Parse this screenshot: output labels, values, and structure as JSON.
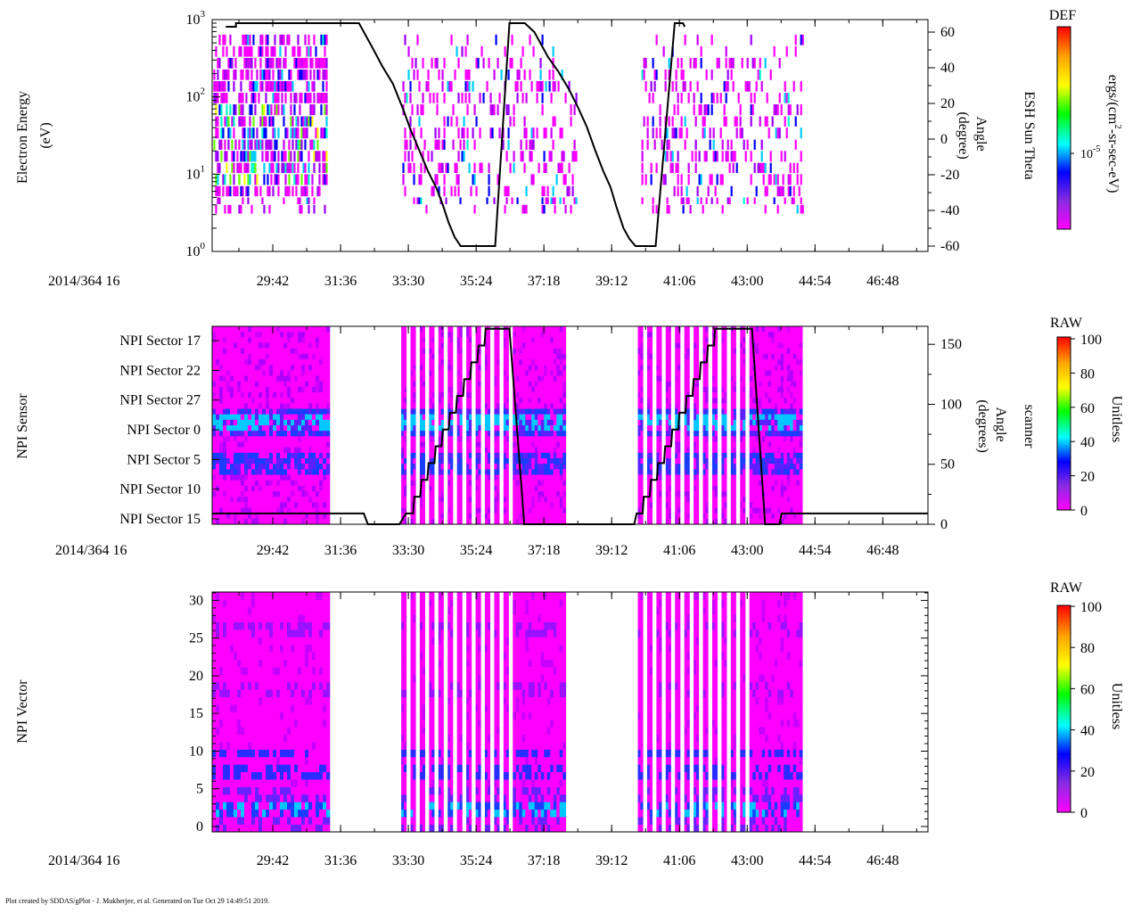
{
  "chart_data": [
    {
      "type": "heatmap",
      "panel": "electron-energy",
      "ylabel": [
        "Electron Energy",
        "(eV)"
      ],
      "y_scale": "log",
      "ylim": [
        1,
        1000
      ],
      "y_ticks": [
        {
          "base": "10",
          "exp": "0"
        },
        {
          "base": "10",
          "exp": "1"
        },
        {
          "base": "10",
          "exp": "2"
        },
        {
          "base": "10",
          "exp": "3"
        }
      ],
      "xlabel": "2014/364 16",
      "x_tick_labels": [
        "29:42",
        "31:36",
        "33:30",
        "35:24",
        "37:18",
        "39:12",
        "41:06",
        "43:00",
        "44:54",
        "46:48"
      ],
      "x_range_sec": [
        1680,
        2884
      ],
      "data_intervals": [
        [
          1680,
          1874
        ],
        [
          1998,
          2294
        ],
        [
          2400,
          2674
        ]
      ],
      "overlay_line": {
        "name": "ESH Sun Theta",
        "ylabel": [
          "Angle",
          "(degree)"
        ],
        "right_title": "ESH Sun Theta",
        "ylim": [
          -63,
          67
        ],
        "y_ticks": [
          "60",
          "40",
          "20",
          "0",
          "-20",
          "-40",
          "-60"
        ],
        "points": [
          [
            1703,
            63
          ],
          [
            1720,
            63
          ],
          [
            1720,
            65
          ],
          [
            1882,
            65
          ],
          [
            1927,
            65
          ],
          [
            1950,
            51
          ],
          [
            1966,
            41
          ],
          [
            1984,
            31
          ],
          [
            2002,
            16
          ],
          [
            2014,
            5
          ],
          [
            2028,
            -6
          ],
          [
            2043,
            -18
          ],
          [
            2058,
            -28
          ],
          [
            2068,
            -37
          ],
          [
            2078,
            -47
          ],
          [
            2088,
            -55
          ],
          [
            2098,
            -60
          ],
          [
            2156,
            -60
          ],
          [
            2180,
            65
          ],
          [
            2206,
            65
          ],
          [
            2222,
            60
          ],
          [
            2245,
            46
          ],
          [
            2262,
            38
          ],
          [
            2280,
            28
          ],
          [
            2295,
            18
          ],
          [
            2310,
            7
          ],
          [
            2324,
            -6
          ],
          [
            2338,
            -18
          ],
          [
            2350,
            -27
          ],
          [
            2360,
            -38
          ],
          [
            2372,
            -50
          ],
          [
            2382,
            -56
          ],
          [
            2392,
            -60
          ],
          [
            2426,
            -60
          ],
          [
            2458,
            65
          ],
          [
            2472,
            65
          ],
          [
            2475,
            63
          ]
        ]
      },
      "colorbar": {
        "title": "DEF",
        "units": [
          "ergs/(cm",
          "2",
          "-sr-sec-eV)"
        ],
        "tick": {
          "base": "10",
          "exp": "-5"
        },
        "gradient": [
          "#ff00ff",
          "#8a2be2",
          "#0000ff",
          "#00ffff",
          "#00ff00",
          "#ffff00",
          "#ffa500",
          "#ff0000"
        ]
      }
    },
    {
      "type": "heatmap",
      "panel": "npi-sensor",
      "ylabel": "NPI Sensor",
      "y_categories": [
        "NPI Sector 17",
        "NPI Sector 22",
        "NPI Sector 27",
        "NPI Sector 0",
        "NPI Sector 5",
        "NPI Sector 10",
        "NPI Sector 15"
      ],
      "xlabel": "2014/364 16",
      "x_tick_labels": [
        "29:42",
        "31:36",
        "33:30",
        "35:24",
        "37:18",
        "39:12",
        "41:06",
        "43:00",
        "44:54",
        "46:48"
      ],
      "x_range_sec": [
        1680,
        2884
      ],
      "data_intervals": [
        [
          1680,
          1874
        ],
        [
          1998,
          2274
        ],
        [
          2396,
          2672
        ]
      ],
      "stripe_gaps": {
        "first": [
          1998,
          2274
        ],
        "second": [
          2396,
          2672
        ],
        "stripe_count": 12
      },
      "overlay_line": {
        "name": "scanner Angle",
        "ylabel": [
          "Angle",
          "(degrees)"
        ],
        "right_title": "scanner",
        "ylim": [
          0,
          165
        ],
        "y_ticks": [
          "150",
          "100",
          "50",
          "0"
        ],
        "points": [
          [
            1680,
            9
          ],
          [
            1935,
            9
          ],
          [
            1942,
            0
          ],
          [
            1995,
            0
          ],
          [
            2006,
            9
          ],
          [
            2018,
            9
          ],
          [
            2020,
            23
          ],
          [
            2030,
            23
          ],
          [
            2032,
            37
          ],
          [
            2042,
            37
          ],
          [
            2044,
            51
          ],
          [
            2054,
            51
          ],
          [
            2056,
            65
          ],
          [
            2066,
            65
          ],
          [
            2068,
            79
          ],
          [
            2078,
            79
          ],
          [
            2080,
            93
          ],
          [
            2090,
            93
          ],
          [
            2092,
            107
          ],
          [
            2102,
            107
          ],
          [
            2104,
            121
          ],
          [
            2114,
            121
          ],
          [
            2116,
            135
          ],
          [
            2126,
            135
          ],
          [
            2128,
            149
          ],
          [
            2138,
            149
          ],
          [
            2140,
            163
          ],
          [
            2180,
            163
          ],
          [
            2205,
            0
          ],
          [
            2390,
            0
          ],
          [
            2394,
            9
          ],
          [
            2404,
            9
          ],
          [
            2406,
            23
          ],
          [
            2416,
            23
          ],
          [
            2418,
            37
          ],
          [
            2428,
            37
          ],
          [
            2430,
            51
          ],
          [
            2440,
            51
          ],
          [
            2442,
            65
          ],
          [
            2452,
            65
          ],
          [
            2454,
            79
          ],
          [
            2464,
            79
          ],
          [
            2466,
            93
          ],
          [
            2476,
            93
          ],
          [
            2478,
            107
          ],
          [
            2488,
            107
          ],
          [
            2490,
            121
          ],
          [
            2500,
            121
          ],
          [
            2502,
            135
          ],
          [
            2512,
            135
          ],
          [
            2514,
            149
          ],
          [
            2524,
            149
          ],
          [
            2526,
            163
          ],
          [
            2588,
            163
          ],
          [
            2610,
            0
          ],
          [
            2634,
            0
          ],
          [
            2638,
            9
          ],
          [
            2884,
            9
          ]
        ]
      },
      "colorbar": {
        "title": "RAW",
        "units": "Unitless",
        "range": [
          0,
          100
        ],
        "ticks": [
          "100",
          "80",
          "60",
          "40",
          "20",
          "0"
        ],
        "gradient": [
          "#ff00ff",
          "#8a2be2",
          "#0000ff",
          "#00ffff",
          "#00ff00",
          "#ffff00",
          "#ffa500",
          "#ff0000"
        ]
      }
    },
    {
      "type": "heatmap",
      "panel": "npi-vector",
      "ylabel": "NPI Vector",
      "ylim": [
        0,
        31
      ],
      "y_ticks": [
        "0",
        "5",
        "10",
        "15",
        "20",
        "25",
        "30"
      ],
      "xlabel": "2014/364 16",
      "x_tick_labels": [
        "29:42",
        "31:36",
        "33:30",
        "35:24",
        "37:18",
        "39:12",
        "41:06",
        "43:00",
        "44:54",
        "46:48"
      ],
      "x_range_sec": [
        1680,
        2884
      ],
      "data_intervals": [
        [
          1680,
          1874
        ],
        [
          1998,
          2274
        ],
        [
          2396,
          2672
        ]
      ],
      "colorbar": {
        "title": "RAW",
        "units": "Unitless",
        "range": [
          0,
          100
        ],
        "ticks": [
          "100",
          "80",
          "60",
          "40",
          "20",
          "0"
        ],
        "gradient": [
          "#ff00ff",
          "#8a2be2",
          "#0000ff",
          "#00ffff",
          "#00ff00",
          "#ffff00",
          "#ffa500",
          "#ff0000"
        ]
      }
    }
  ],
  "footer": "Plot created by SDDAS/gPlot - J. Mukherjee, et al.  Generated on Tue Oct 29 14:49:51 2019."
}
